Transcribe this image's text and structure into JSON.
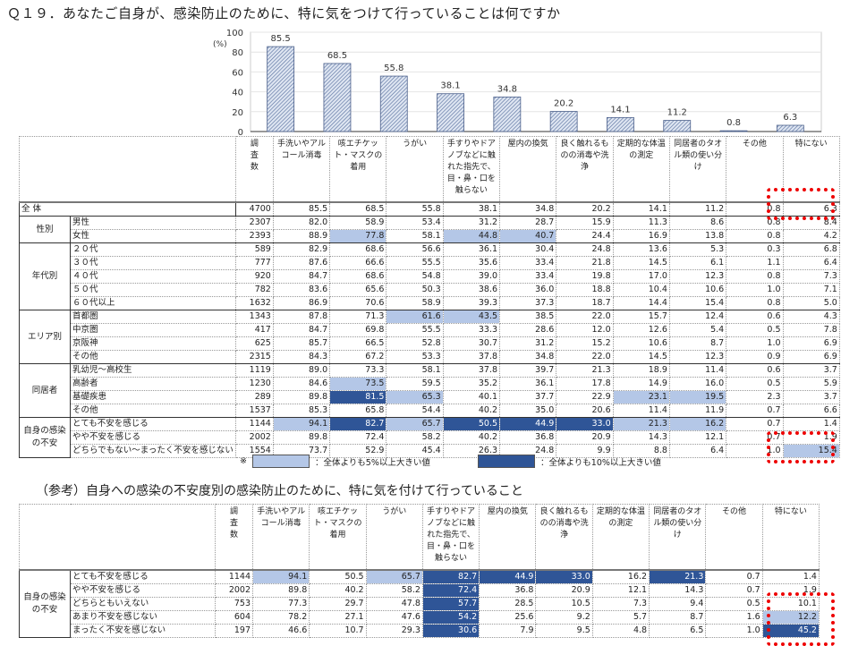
{
  "title": "Ｑ１９．あなたご自身が、感染防止のために、特に気をつけて行っていることは何ですか",
  "title2": "（参考）自身への感染の不安度別の感染防止のために、特に気を付けて行っていること",
  "colors": {
    "light": "#b4c7e7",
    "dark": "#2f5597",
    "bar": "#8ea3c8",
    "highlight_box": "#e00000"
  },
  "chart_data": {
    "type": "bar",
    "ylabel": "(%)",
    "ylim": [
      0,
      100
    ],
    "yticks": [
      "0",
      "20",
      "40",
      "60",
      "80",
      "100"
    ],
    "categories": [
      "手洗いやアルコール消毒",
      "咳エチケット・マスクの着用",
      "うがい",
      "手すりやドアノブなどに触れた指先で、目・鼻・口を触らない",
      "屋内の換気",
      "良く触れるものの消毒や洗浄",
      "定期的な体温の測定",
      "同居者のタオル類の使い分け",
      "その他",
      "特にない"
    ],
    "values": [
      85.5,
      68.5,
      55.8,
      38.1,
      34.8,
      20.2,
      14.1,
      11.2,
      0.8,
      6.3
    ],
    "value_labels": [
      "85.5",
      "68.5",
      "55.8",
      "38.1",
      "34.8",
      "20.2",
      "14.1",
      "11.2",
      "0.8",
      "6.3"
    ],
    "grid": true
  },
  "table_header": {
    "n": "調査数",
    "columns": [
      "手洗いやアルコール消毒",
      "咳エチケット・マスクの着用",
      "うがい",
      "手すりやドアノブなどに触れた指先で、目・鼻・口を触らない",
      "屋内の換気",
      "良く触れるものの消毒や洗浄",
      "定期的な体温の測定",
      "同居者のタオル類の使い分け",
      "その他",
      "特にない"
    ]
  },
  "table1": [
    {
      "group": "全 体",
      "rows": [
        {
          "label": "",
          "n": "4700",
          "v": [
            "85.5",
            "68.5",
            "55.8",
            "38.1",
            "34.8",
            "20.2",
            "14.1",
            "11.2",
            "0.8",
            "6.3"
          ],
          "hl": {}
        }
      ]
    },
    {
      "group": "性別",
      "rows": [
        {
          "label": "男性",
          "n": "2307",
          "v": [
            "82.0",
            "58.9",
            "53.4",
            "31.2",
            "28.7",
            "15.9",
            "11.3",
            "8.6",
            "0.8",
            "8.4"
          ],
          "hl": {}
        },
        {
          "label": "女性",
          "n": "2393",
          "v": [
            "88.9",
            "77.8",
            "58.1",
            "44.8",
            "40.7",
            "24.4",
            "16.9",
            "13.8",
            "0.8",
            "4.2"
          ],
          "hl": {
            "1": "L",
            "3": "L",
            "4": "L"
          }
        }
      ]
    },
    {
      "group": "年代別",
      "rows": [
        {
          "label": "２０代",
          "n": "589",
          "v": [
            "82.9",
            "68.6",
            "56.6",
            "36.1",
            "30.4",
            "24.8",
            "13.6",
            "5.3",
            "0.3",
            "6.8"
          ],
          "hl": {}
        },
        {
          "label": "３０代",
          "n": "777",
          "v": [
            "87.6",
            "66.6",
            "55.5",
            "35.6",
            "33.4",
            "21.8",
            "14.5",
            "6.1",
            "1.1",
            "6.4"
          ],
          "hl": {}
        },
        {
          "label": "４０代",
          "n": "920",
          "v": [
            "84.7",
            "68.6",
            "54.8",
            "39.0",
            "33.4",
            "19.8",
            "17.0",
            "12.3",
            "0.8",
            "7.3"
          ],
          "hl": {}
        },
        {
          "label": "５０代",
          "n": "782",
          "v": [
            "83.6",
            "65.6",
            "50.3",
            "38.6",
            "36.0",
            "18.8",
            "10.4",
            "10.6",
            "1.0",
            "7.1"
          ],
          "hl": {}
        },
        {
          "label": "６０代以上",
          "n": "1632",
          "v": [
            "86.9",
            "70.6",
            "58.9",
            "39.3",
            "37.3",
            "18.7",
            "14.4",
            "15.4",
            "0.8",
            "5.0"
          ],
          "hl": {}
        }
      ]
    },
    {
      "group": "エリア別",
      "rows": [
        {
          "label": "首都圏",
          "n": "1343",
          "v": [
            "87.8",
            "71.3",
            "61.6",
            "43.5",
            "38.5",
            "22.0",
            "15.7",
            "12.4",
            "0.6",
            "4.3"
          ],
          "hl": {
            "2": "L",
            "3": "L"
          }
        },
        {
          "label": "中京圏",
          "n": "417",
          "v": [
            "84.7",
            "69.8",
            "55.5",
            "33.3",
            "28.6",
            "12.0",
            "12.6",
            "5.4",
            "0.5",
            "7.8"
          ],
          "hl": {}
        },
        {
          "label": "京阪神",
          "n": "625",
          "v": [
            "85.7",
            "66.5",
            "52.8",
            "30.7",
            "31.2",
            "15.2",
            "10.6",
            "8.7",
            "1.0",
            "6.9"
          ],
          "hl": {}
        },
        {
          "label": "その他",
          "n": "2315",
          "v": [
            "84.3",
            "67.2",
            "53.3",
            "37.8",
            "34.8",
            "22.0",
            "14.5",
            "12.3",
            "0.9",
            "6.9"
          ],
          "hl": {}
        }
      ]
    },
    {
      "group": "同居者",
      "rows": [
        {
          "label": "乳幼児～高校生",
          "n": "1119",
          "v": [
            "89.0",
            "73.3",
            "58.1",
            "37.8",
            "39.7",
            "21.3",
            "18.9",
            "11.4",
            "0.6",
            "3.7"
          ],
          "hl": {}
        },
        {
          "label": "高齢者",
          "n": "1230",
          "v": [
            "84.6",
            "73.5",
            "59.5",
            "35.2",
            "36.1",
            "17.8",
            "14.9",
            "16.0",
            "0.5",
            "5.9"
          ],
          "hl": {
            "1": "L"
          }
        },
        {
          "label": "基礎疾患",
          "n": "289",
          "v": [
            "89.8",
            "81.5",
            "65.3",
            "40.1",
            "37.7",
            "22.9",
            "23.1",
            "19.5",
            "2.3",
            "3.7"
          ],
          "hl": {
            "1": "D",
            "2": "L",
            "6": "L",
            "7": "L"
          }
        },
        {
          "label": "その他",
          "n": "1537",
          "v": [
            "85.3",
            "65.8",
            "54.4",
            "40.2",
            "35.0",
            "20.6",
            "11.4",
            "11.9",
            "0.7",
            "6.6"
          ],
          "hl": {}
        }
      ]
    },
    {
      "group": "自身の感染の不安",
      "rows": [
        {
          "label": "とても不安を感じる",
          "n": "1144",
          "v": [
            "94.1",
            "82.7",
            "65.7",
            "50.5",
            "44.9",
            "33.0",
            "21.3",
            "16.2",
            "0.7",
            "1.4"
          ],
          "hl": {
            "0": "L",
            "1": "D",
            "2": "L",
            "3": "D",
            "4": "D",
            "5": "D",
            "6": "L",
            "7": "L"
          }
        },
        {
          "label": "やや不安を感じる",
          "n": "2002",
          "v": [
            "89.8",
            "72.4",
            "58.2",
            "40.2",
            "36.8",
            "20.9",
            "14.3",
            "12.1",
            "0.7",
            "1.9"
          ],
          "hl": {}
        },
        {
          "label": "どちらでもない～まったく不安を感じない",
          "n": "1554",
          "v": [
            "73.7",
            "52.9",
            "45.4",
            "26.3",
            "24.8",
            "9.9",
            "8.8",
            "6.4",
            "1.0",
            "15.4"
          ],
          "hl": {
            "9": "L"
          }
        }
      ]
    }
  ],
  "legend": {
    "mark": "※",
    "light": "：全体よりも5%以上大きい値",
    "dark": "：全体よりも10%以上大きい値"
  },
  "table2": [
    {
      "group": "自身の感染の不安",
      "rows": [
        {
          "label": "とても不安を感じる",
          "n": "1144",
          "v": [
            "94.1",
            "50.5",
            "65.7",
            "82.7",
            "44.9",
            "33.0",
            "16.2",
            "21.3",
            "0.7",
            "1.4"
          ],
          "hl": {
            "0": "L",
            "2": "L",
            "3": "D",
            "4": "D",
            "5": "D",
            "7": "D"
          }
        },
        {
          "label": "やや不安を感じる",
          "n": "2002",
          "v": [
            "89.8",
            "40.2",
            "58.2",
            "72.4",
            "36.8",
            "20.9",
            "12.1",
            "14.3",
            "0.7",
            "1.9"
          ],
          "hl": {
            "3": "D"
          }
        },
        {
          "label": "どちらともいえない",
          "n": "753",
          "v": [
            "77.3",
            "29.7",
            "47.8",
            "57.7",
            "28.5",
            "10.5",
            "7.3",
            "9.4",
            "0.5",
            "10.1"
          ],
          "hl": {
            "3": "D"
          }
        },
        {
          "label": "あまり不安を感じない",
          "n": "604",
          "v": [
            "78.2",
            "27.1",
            "47.6",
            "54.2",
            "25.6",
            "9.2",
            "5.7",
            "8.7",
            "1.6",
            "12.2"
          ],
          "hl": {
            "3": "D",
            "9": "L"
          }
        },
        {
          "label": "まったく不安を感じない",
          "n": "197",
          "v": [
            "46.6",
            "10.7",
            "29.3",
            "30.6",
            "7.9",
            "9.5",
            "4.8",
            "6.5",
            "1.0",
            "45.2"
          ],
          "hl": {
            "3": "D",
            "9": "D"
          }
        }
      ]
    }
  ]
}
